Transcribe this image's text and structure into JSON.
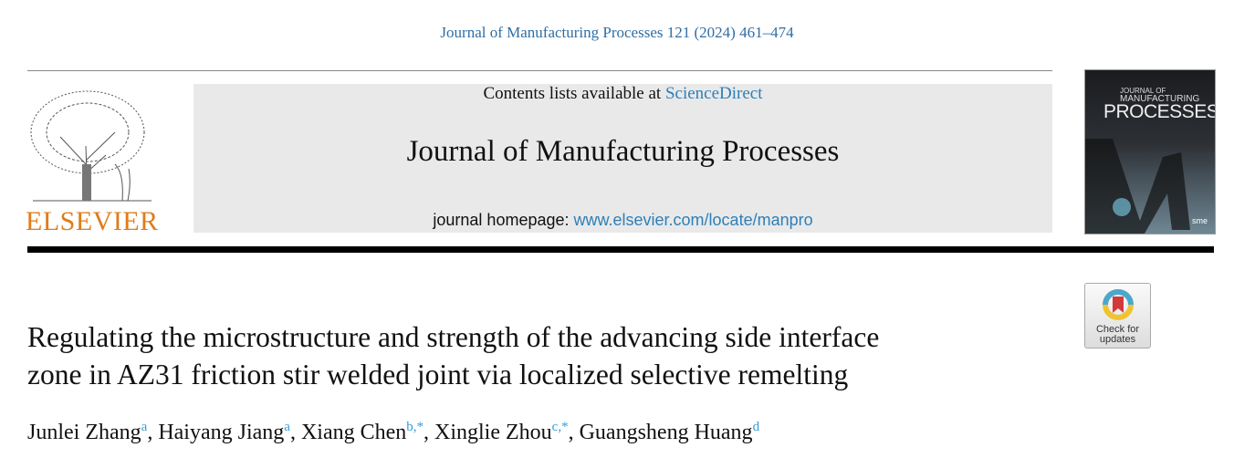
{
  "journal_reference": "Journal of Manufacturing Processes 121 (2024) 461–474",
  "header": {
    "publisher": "ELSEVIER",
    "contents_prefix": "Contents lists available at ",
    "contents_link": "ScienceDirect",
    "journal_title": "Journal of Manufacturing Processes",
    "homepage_prefix": "journal homepage: ",
    "homepage_link": "www.elsevier.com/locate/manpro",
    "cover": {
      "line1": "JOURNAL OF",
      "line2": "MANUFACTURING",
      "line3": "PROCESSES",
      "badge": "sme"
    },
    "check_updates": {
      "line1": "Check for",
      "line2": "updates"
    }
  },
  "article": {
    "title_line1": "Regulating the microstructure and strength of the advancing side interface",
    "title_line2": "zone in AZ31 friction stir welded joint via localized selective remelting",
    "authors": [
      {
        "name": "Junlei Zhang",
        "aff": "a",
        "sep": ", "
      },
      {
        "name": "Haiyang Jiang",
        "aff": "a",
        "sep": ", "
      },
      {
        "name": "Xiang Chen",
        "aff": "b,*",
        "sep": ", "
      },
      {
        "name": "Xinglie Zhou",
        "aff": "c,*",
        "sep": ", "
      },
      {
        "name": "Guangsheng Huang",
        "aff": "d",
        "sep": ""
      }
    ]
  },
  "colors": {
    "link": "#2e7fb8",
    "elsevier_orange": "#e07b1a",
    "header_box": "#e9e9e9"
  }
}
